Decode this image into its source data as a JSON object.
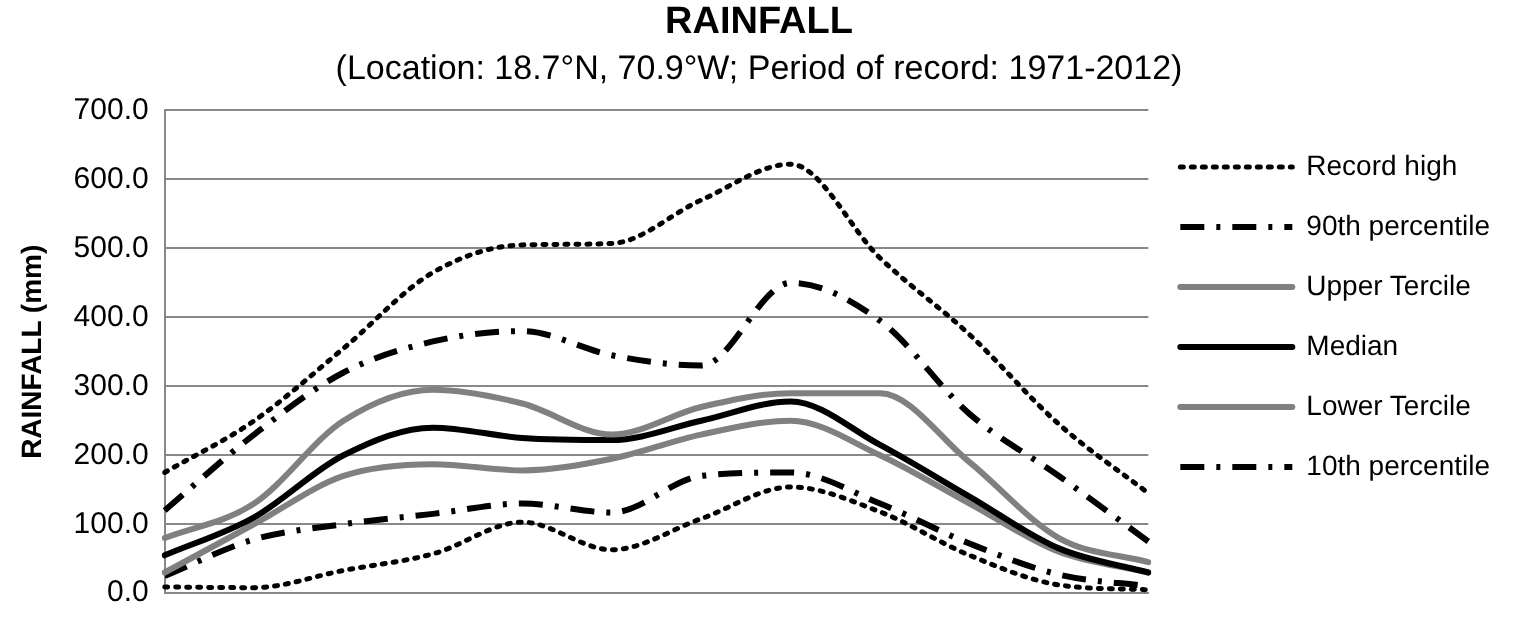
{
  "chart_data": {
    "type": "line",
    "title": "RAINFALL",
    "subtitle": "(Location: 18.7°N, 70.9°W; Period of record: 1971-2012)",
    "ylabel": "RAINFALL (mm)",
    "categories": [
      null,
      null,
      null,
      null,
      null,
      null,
      null,
      null,
      null,
      null,
      null,
      null
    ],
    "series": [
      {
        "name": "Record high",
        "color": "#000000",
        "line_style": "dotted",
        "values": [
          175,
          250,
          355,
          465,
          505,
          507,
          570,
          622,
          486,
          375,
          245,
          145
        ]
      },
      {
        "name": "90th percentile",
        "color": "#000000",
        "line_style": "dashdot",
        "values": [
          120,
          230,
          320,
          365,
          380,
          345,
          330,
          450,
          395,
          260,
          170,
          75
        ]
      },
      {
        "name": "Upper Tercile",
        "color": "#808080",
        "line_style": "solid",
        "values": [
          80,
          130,
          250,
          295,
          275,
          230,
          270,
          290,
          290,
          190,
          80,
          45
        ]
      },
      {
        "name": "Median",
        "color": "#000000",
        "line_style": "solid",
        "values": [
          55,
          110,
          200,
          240,
          225,
          222,
          250,
          278,
          215,
          140,
          65,
          30
        ]
      },
      {
        "name": "Lower Tercile",
        "color": "#808080",
        "line_style": "solid",
        "values": [
          30,
          100,
          170,
          187,
          178,
          195,
          230,
          250,
          200,
          130,
          60,
          30
        ]
      },
      {
        "name": "10th percentile",
        "color": "#000000",
        "line_style": "dashdot",
        "values": [
          25,
          78,
          100,
          115,
          130,
          117,
          170,
          175,
          130,
          72,
          27,
          10
        ]
      },
      {
        "color": "#000000",
        "line_style": "dotted",
        "values": [
          9,
          8,
          33,
          57,
          103,
          63,
          108,
          154,
          118,
          55,
          12,
          5
        ]
      }
    ],
    "ylim": [
      0,
      700
    ],
    "yticks": [
      {
        "value": 0,
        "label": "0.0"
      },
      {
        "value": 100,
        "label": "100.0"
      },
      {
        "value": 200,
        "label": "200.0"
      },
      {
        "value": 300,
        "label": "300.0"
      },
      {
        "value": 400,
        "label": "400.0"
      },
      {
        "value": 500,
        "label": "500.0"
      },
      {
        "value": 600,
        "label": "600.0"
      },
      {
        "value": 700,
        "label": "700.0"
      }
    ],
    "grid": "y",
    "legend": "right",
    "marker": "none"
  }
}
